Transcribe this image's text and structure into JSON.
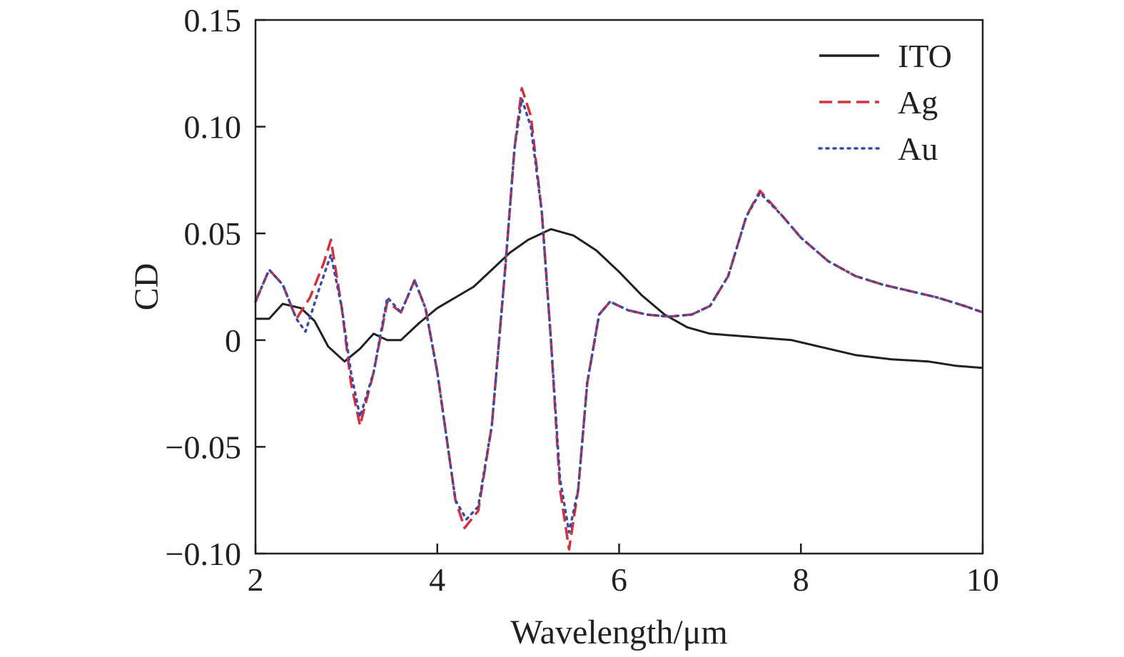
{
  "chart_data": {
    "type": "line",
    "xlabel": "Wavelength/μm",
    "ylabel": "CD",
    "xlim": [
      2,
      10
    ],
    "ylim": [
      -0.1,
      0.15
    ],
    "x_ticks": [
      "2",
      "4",
      "6",
      "8",
      "10"
    ],
    "y_ticks": [
      "−0.10",
      "−0.05",
      "0",
      "0.05",
      "0.10",
      "0.15"
    ],
    "grid": false,
    "legend_position": "top-right",
    "series": [
      {
        "name": "ITO",
        "color": "#231f20",
        "dash": "solid",
        "points": [
          [
            2.0,
            0.01
          ],
          [
            2.15,
            0.01
          ],
          [
            2.3,
            0.017
          ],
          [
            2.5,
            0.015
          ],
          [
            2.65,
            0.009
          ],
          [
            2.8,
            -0.003
          ],
          [
            2.98,
            -0.01
          ],
          [
            3.15,
            -0.004
          ],
          [
            3.3,
            0.003
          ],
          [
            3.45,
            0.0
          ],
          [
            3.6,
            0.0
          ],
          [
            3.8,
            0.008
          ],
          [
            4.0,
            0.015
          ],
          [
            4.2,
            0.02
          ],
          [
            4.4,
            0.025
          ],
          [
            4.6,
            0.033
          ],
          [
            4.8,
            0.041
          ],
          [
            5.0,
            0.047
          ],
          [
            5.25,
            0.052
          ],
          [
            5.5,
            0.049
          ],
          [
            5.75,
            0.042
          ],
          [
            6.0,
            0.032
          ],
          [
            6.25,
            0.021
          ],
          [
            6.5,
            0.012
          ],
          [
            6.75,
            0.006
          ],
          [
            7.0,
            0.003
          ],
          [
            7.3,
            0.002
          ],
          [
            7.6,
            0.001
          ],
          [
            7.9,
            0.0
          ],
          [
            8.2,
            -0.003
          ],
          [
            8.6,
            -0.007
          ],
          [
            9.0,
            -0.009
          ],
          [
            9.4,
            -0.01
          ],
          [
            9.7,
            -0.012
          ],
          [
            10.0,
            -0.013
          ]
        ]
      },
      {
        "name": "Ag",
        "color": "#d62e3a",
        "dash": "dashed",
        "points": [
          [
            2.0,
            0.018
          ],
          [
            2.15,
            0.033
          ],
          [
            2.3,
            0.026
          ],
          [
            2.45,
            0.01
          ],
          [
            2.6,
            0.02
          ],
          [
            2.75,
            0.036
          ],
          [
            2.83,
            0.047
          ],
          [
            2.95,
            0.015
          ],
          [
            3.05,
            -0.02
          ],
          [
            3.15,
            -0.04
          ],
          [
            3.3,
            -0.015
          ],
          [
            3.45,
            0.018
          ],
          [
            3.6,
            0.013
          ],
          [
            3.75,
            0.028
          ],
          [
            3.87,
            0.015
          ],
          [
            4.0,
            -0.015
          ],
          [
            4.1,
            -0.045
          ],
          [
            4.2,
            -0.075
          ],
          [
            4.3,
            -0.088
          ],
          [
            4.45,
            -0.08
          ],
          [
            4.6,
            -0.04
          ],
          [
            4.75,
            0.035
          ],
          [
            4.85,
            0.09
          ],
          [
            4.93,
            0.118
          ],
          [
            5.03,
            0.105
          ],
          [
            5.15,
            0.06
          ],
          [
            5.25,
            0.0
          ],
          [
            5.35,
            -0.07
          ],
          [
            5.45,
            -0.098
          ],
          [
            5.55,
            -0.07
          ],
          [
            5.65,
            -0.02
          ],
          [
            5.78,
            0.012
          ],
          [
            5.9,
            0.018
          ],
          [
            6.1,
            0.014
          ],
          [
            6.3,
            0.012
          ],
          [
            6.55,
            0.011
          ],
          [
            6.8,
            0.012
          ],
          [
            7.0,
            0.016
          ],
          [
            7.2,
            0.03
          ],
          [
            7.4,
            0.058
          ],
          [
            7.55,
            0.07
          ],
          [
            7.8,
            0.058
          ],
          [
            8.0,
            0.048
          ],
          [
            8.3,
            0.037
          ],
          [
            8.6,
            0.03
          ],
          [
            8.9,
            0.026
          ],
          [
            9.2,
            0.023
          ],
          [
            9.5,
            0.02
          ],
          [
            9.8,
            0.016
          ],
          [
            10.0,
            0.013
          ]
        ]
      },
      {
        "name": "Au",
        "color": "#3b4aa3",
        "dash": "dotted",
        "points": [
          [
            2.0,
            0.018
          ],
          [
            2.15,
            0.033
          ],
          [
            2.3,
            0.026
          ],
          [
            2.45,
            0.01
          ],
          [
            2.55,
            0.004
          ],
          [
            2.7,
            0.024
          ],
          [
            2.83,
            0.04
          ],
          [
            2.95,
            0.015
          ],
          [
            3.05,
            -0.015
          ],
          [
            3.15,
            -0.036
          ],
          [
            3.3,
            -0.015
          ],
          [
            3.45,
            0.02
          ],
          [
            3.6,
            0.013
          ],
          [
            3.75,
            0.028
          ],
          [
            3.87,
            0.015
          ],
          [
            4.0,
            -0.015
          ],
          [
            4.1,
            -0.045
          ],
          [
            4.2,
            -0.075
          ],
          [
            4.32,
            -0.084
          ],
          [
            4.45,
            -0.078
          ],
          [
            4.6,
            -0.04
          ],
          [
            4.75,
            0.035
          ],
          [
            4.85,
            0.09
          ],
          [
            4.93,
            0.113
          ],
          [
            5.03,
            0.1
          ],
          [
            5.15,
            0.06
          ],
          [
            5.25,
            0.0
          ],
          [
            5.35,
            -0.065
          ],
          [
            5.45,
            -0.09
          ],
          [
            5.55,
            -0.07
          ],
          [
            5.65,
            -0.02
          ],
          [
            5.78,
            0.012
          ],
          [
            5.9,
            0.018
          ],
          [
            6.1,
            0.014
          ],
          [
            6.3,
            0.012
          ],
          [
            6.55,
            0.011
          ],
          [
            6.8,
            0.012
          ],
          [
            7.0,
            0.016
          ],
          [
            7.2,
            0.03
          ],
          [
            7.4,
            0.058
          ],
          [
            7.55,
            0.069
          ],
          [
            7.8,
            0.058
          ],
          [
            8.0,
            0.048
          ],
          [
            8.3,
            0.037
          ],
          [
            8.6,
            0.03
          ],
          [
            8.9,
            0.026
          ],
          [
            9.2,
            0.023
          ],
          [
            9.5,
            0.02
          ],
          [
            9.8,
            0.016
          ],
          [
            10.0,
            0.013
          ]
        ]
      }
    ]
  }
}
